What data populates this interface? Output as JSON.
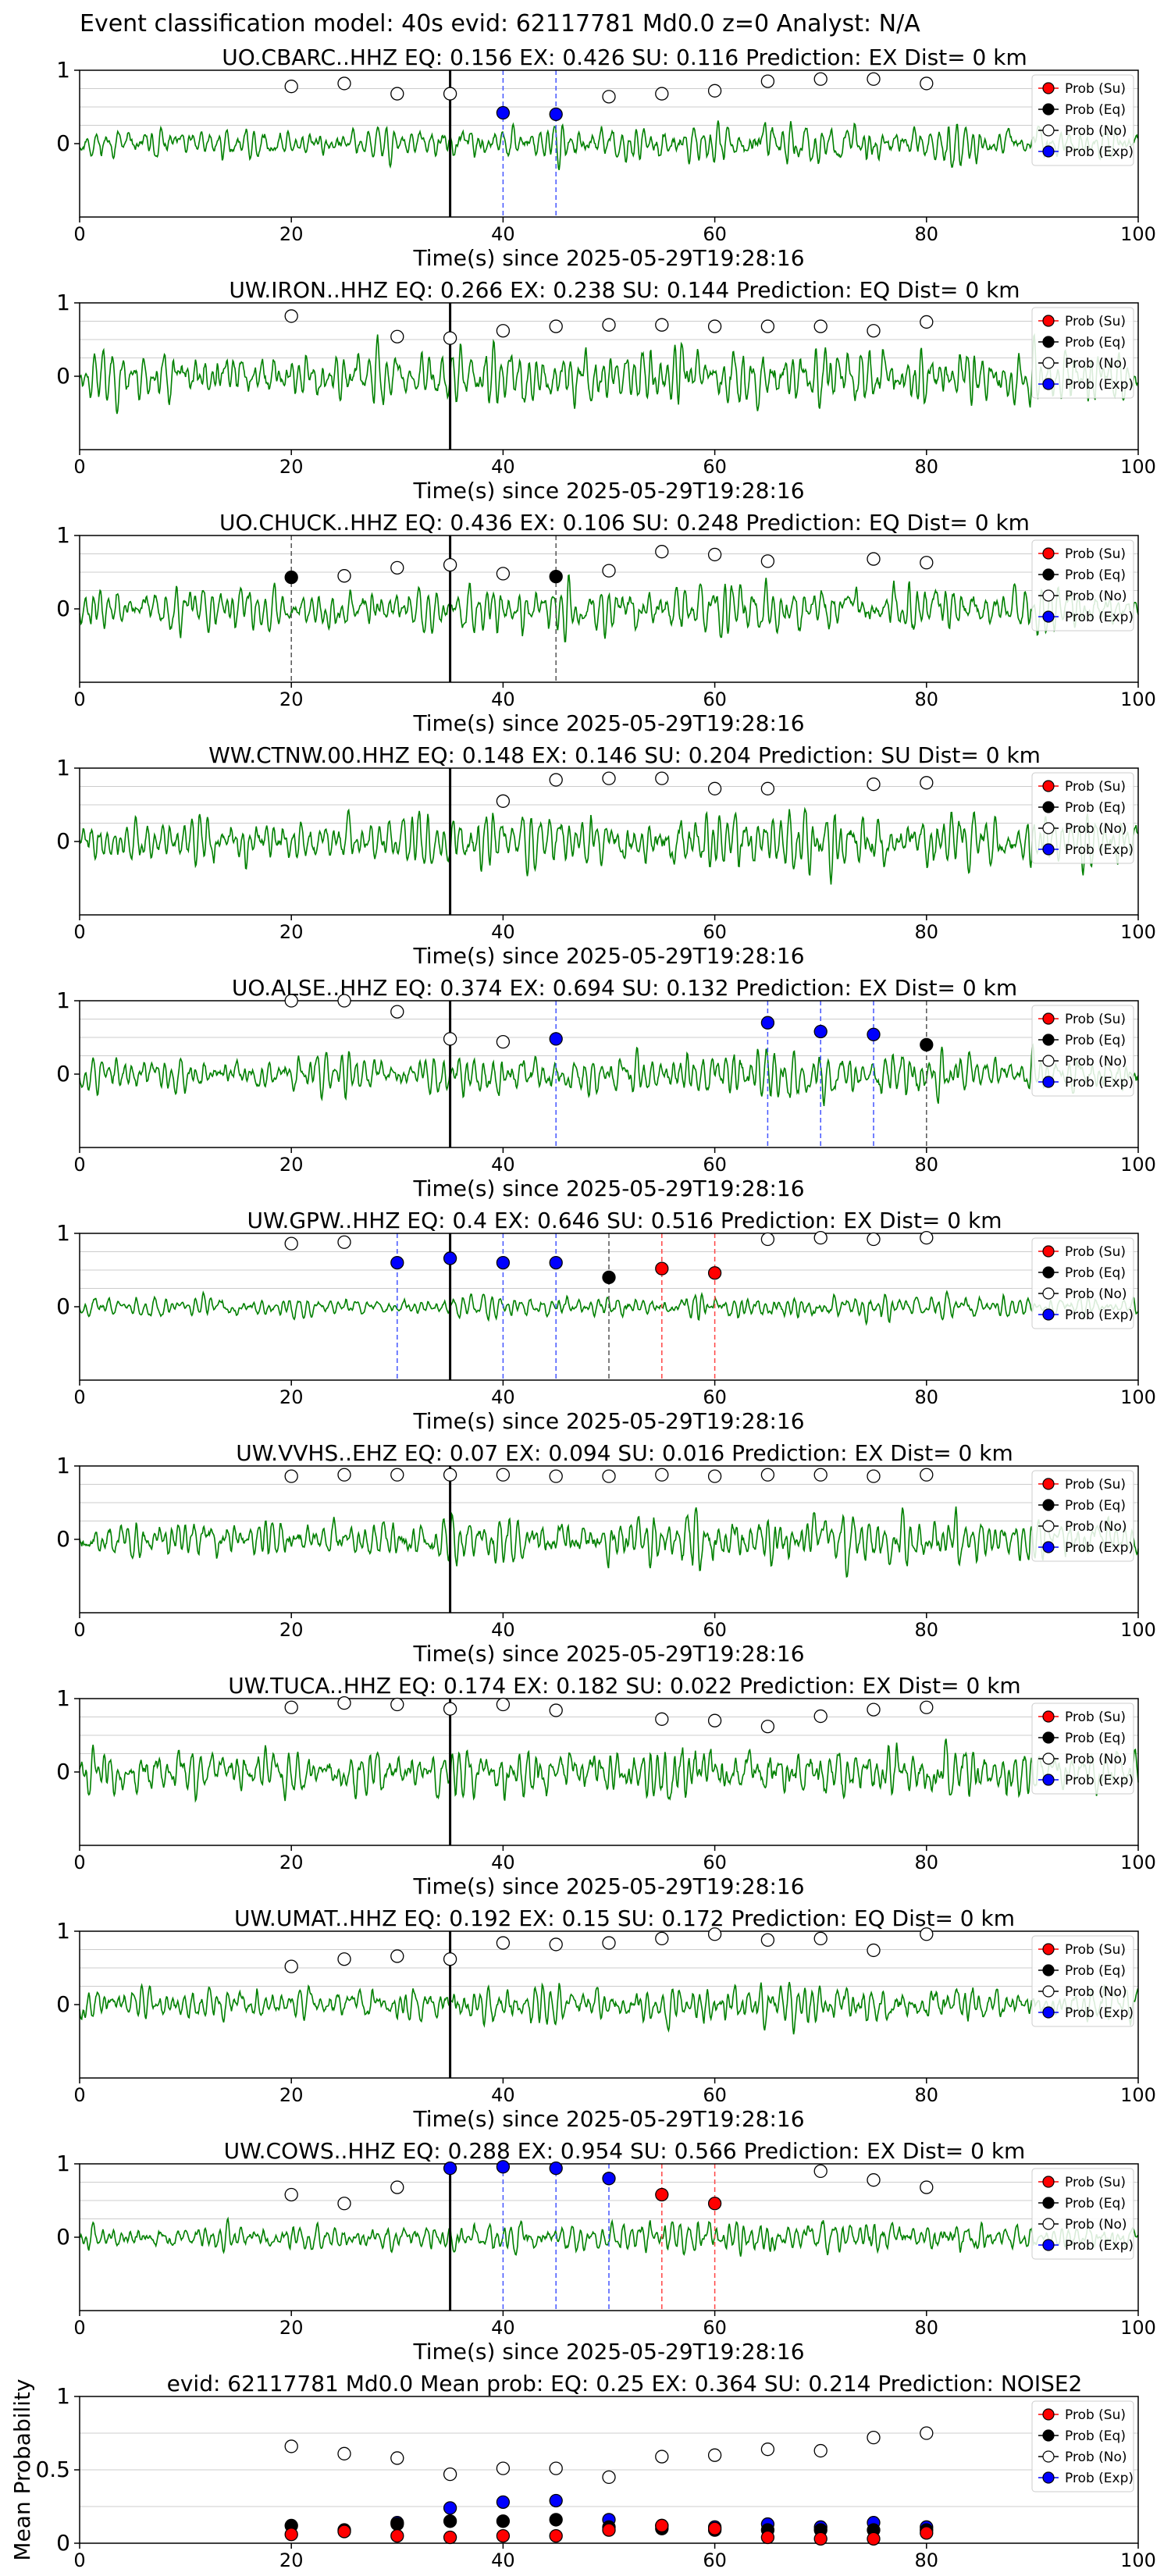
{
  "suptitle": "Event classification model: 40s evid: 62117781 Md0.0 z=0 Analyst: N/A",
  "xlabel": "Time(s) since 2025-05-29T19:28:16",
  "legend": [
    "Prob (Su)",
    "Prob (Eq)",
    "Prob (No)",
    "Prob (Exp)"
  ],
  "colors": {
    "su": "#ff0000",
    "eq": "#000000",
    "no": "#ffffff",
    "exp": "#0000ff",
    "wave": "#008000",
    "grid": "#cccccc"
  },
  "chart_data": [
    {
      "type": "line",
      "title": "UO.CBARC..HHZ   EQ: 0.156  EX: 0.426  SU: 0.116   Prediction: EX    Dist= 0 km",
      "xlim": [
        0,
        100
      ],
      "ylim": [
        -1,
        1
      ],
      "xticks": [
        0,
        20,
        40,
        60,
        80,
        100
      ],
      "yticks": [
        0,
        1
      ],
      "grid": "horizontal",
      "pick_time": 35,
      "seed": 11,
      "amp": 0.55,
      "no": [
        [
          20,
          0.78
        ],
        [
          25,
          0.82
        ],
        [
          30,
          0.68
        ],
        [
          35,
          0.68
        ],
        [
          50,
          0.64
        ],
        [
          55,
          0.68
        ],
        [
          60,
          0.72
        ],
        [
          65,
          0.85
        ],
        [
          70,
          0.88
        ],
        [
          75,
          0.88
        ],
        [
          80,
          0.82
        ]
      ],
      "eq": [],
      "su": [],
      "exp": [
        [
          40,
          0.42
        ],
        [
          45,
          0.4
        ]
      ]
    },
    {
      "type": "line",
      "title": "UW.IRON..HHZ   EQ: 0.266  EX: 0.238  SU: 0.144   Prediction: EQ    Dist= 0 km",
      "xlim": [
        0,
        100
      ],
      "ylim": [
        -1,
        1
      ],
      "xticks": [
        0,
        20,
        40,
        60,
        80,
        100
      ],
      "yticks": [
        0,
        1
      ],
      "grid": "horizontal",
      "pick_time": 35,
      "seed": 23,
      "amp": 0.9,
      "no": [
        [
          20,
          0.82
        ],
        [
          30,
          0.54
        ],
        [
          35,
          0.52
        ],
        [
          40,
          0.62
        ],
        [
          45,
          0.68
        ],
        [
          50,
          0.7
        ],
        [
          55,
          0.7
        ],
        [
          60,
          0.68
        ],
        [
          65,
          0.68
        ],
        [
          70,
          0.68
        ],
        [
          75,
          0.62
        ],
        [
          80,
          0.74
        ]
      ],
      "eq": [],
      "su": [],
      "exp": []
    },
    {
      "type": "line",
      "title": "UO.CHUCK..HHZ   EQ: 0.436  EX: 0.106  SU: 0.248   Prediction: EQ    Dist= 0 km",
      "xlim": [
        0,
        100
      ],
      "ylim": [
        -1,
        1
      ],
      "xticks": [
        0,
        20,
        40,
        60,
        80,
        100
      ],
      "yticks": [
        0,
        1
      ],
      "grid": "horizontal",
      "pick_time": 35,
      "seed": 37,
      "amp": 0.75,
      "no": [
        [
          25,
          0.45
        ],
        [
          30,
          0.56
        ],
        [
          35,
          0.6
        ],
        [
          40,
          0.48
        ],
        [
          50,
          0.52
        ],
        [
          55,
          0.78
        ],
        [
          60,
          0.74
        ],
        [
          65,
          0.65
        ],
        [
          75,
          0.68
        ],
        [
          80,
          0.63
        ]
      ],
      "eq": [
        [
          20,
          0.43
        ],
        [
          45,
          0.44
        ]
      ],
      "su": [],
      "exp": []
    },
    {
      "type": "line",
      "title": "WW.CTNW.00.HHZ   EQ: 0.148  EX: 0.146  SU: 0.204   Prediction: SU    Dist= 0 km",
      "xlim": [
        0,
        100
      ],
      "ylim": [
        -1,
        1
      ],
      "xticks": [
        0,
        20,
        40,
        60,
        80,
        100
      ],
      "yticks": [
        0,
        1
      ],
      "grid": "horizontal",
      "pick_time": 35,
      "seed": 41,
      "amp": 0.8,
      "no": [
        [
          40,
          0.55
        ],
        [
          45,
          0.84
        ],
        [
          50,
          0.86
        ],
        [
          55,
          0.86
        ],
        [
          60,
          0.72
        ],
        [
          65,
          0.72
        ],
        [
          75,
          0.78
        ],
        [
          80,
          0.8
        ]
      ],
      "eq": [],
      "su": [],
      "exp": []
    },
    {
      "type": "line",
      "title": "UO.ALSE..HHZ   EQ: 0.374  EX: 0.694  SU: 0.132   Prediction: EX    Dist= 0 km",
      "xlim": [
        0,
        100
      ],
      "ylim": [
        -1,
        1
      ],
      "xticks": [
        0,
        20,
        40,
        60,
        80,
        100
      ],
      "yticks": [
        0,
        1
      ],
      "grid": "horizontal",
      "pick_time": 35,
      "seed": 53,
      "amp": 0.65,
      "no": [
        [
          20,
          1.0
        ],
        [
          25,
          1.0
        ],
        [
          30,
          0.85
        ],
        [
          35,
          0.48
        ],
        [
          40,
          0.44
        ]
      ],
      "eq": [
        [
          80,
          0.4
        ]
      ],
      "su": [],
      "exp": [
        [
          45,
          0.48
        ],
        [
          65,
          0.7
        ],
        [
          70,
          0.58
        ],
        [
          75,
          0.54
        ]
      ]
    },
    {
      "type": "line",
      "title": "UW.GPW..HHZ   EQ: 0.4  EX: 0.646  SU: 0.516   Prediction: EX    Dist= 0 km",
      "xlim": [
        0,
        100
      ],
      "ylim": [
        -1,
        1
      ],
      "xticks": [
        0,
        20,
        40,
        60,
        80,
        100
      ],
      "yticks": [
        0,
        1
      ],
      "grid": "horizontal",
      "pick_time": 35,
      "seed": 67,
      "amp": 0.35,
      "no": [
        [
          20,
          0.86
        ],
        [
          25,
          0.88
        ],
        [
          65,
          0.92
        ],
        [
          70,
          0.94
        ],
        [
          75,
          0.92
        ],
        [
          80,
          0.94
        ]
      ],
      "eq": [
        [
          50,
          0.4
        ]
      ],
      "su": [
        [
          55,
          0.52
        ],
        [
          60,
          0.46
        ]
      ],
      "exp": [
        [
          30,
          0.6
        ],
        [
          35,
          0.66
        ],
        [
          40,
          0.6
        ],
        [
          45,
          0.6
        ]
      ]
    },
    {
      "type": "line",
      "title": "UW.VVHS..EHZ   EQ: 0.07  EX: 0.094  SU: 0.016   Prediction: EX    Dist= 0 km",
      "xlim": [
        0,
        100
      ],
      "ylim": [
        -1,
        1
      ],
      "xticks": [
        0,
        20,
        40,
        60,
        80,
        100
      ],
      "yticks": [
        0,
        1
      ],
      "grid": "horizontal",
      "pick_time": 35,
      "seed": 79,
      "amp": 0.75,
      "no": [
        [
          20,
          0.86
        ],
        [
          25,
          0.88
        ],
        [
          30,
          0.88
        ],
        [
          35,
          0.88
        ],
        [
          40,
          0.88
        ],
        [
          45,
          0.86
        ],
        [
          50,
          0.86
        ],
        [
          55,
          0.88
        ],
        [
          60,
          0.86
        ],
        [
          65,
          0.88
        ],
        [
          70,
          0.88
        ],
        [
          75,
          0.86
        ],
        [
          80,
          0.88
        ]
      ],
      "eq": [],
      "su": [],
      "exp": []
    },
    {
      "type": "line",
      "title": "UW.TUCA..HHZ   EQ: 0.174  EX: 0.182  SU: 0.022   Prediction: EX    Dist= 0 km",
      "xlim": [
        0,
        100
      ],
      "ylim": [
        -1,
        1
      ],
      "xticks": [
        0,
        20,
        40,
        60,
        80,
        100
      ],
      "yticks": [
        0,
        1
      ],
      "grid": "horizontal",
      "pick_time": 35,
      "seed": 83,
      "amp": 0.9,
      "no": [
        [
          20,
          0.88
        ],
        [
          25,
          0.94
        ],
        [
          30,
          0.92
        ],
        [
          35,
          0.86
        ],
        [
          40,
          0.92
        ],
        [
          45,
          0.84
        ],
        [
          55,
          0.72
        ],
        [
          60,
          0.7
        ],
        [
          65,
          0.62
        ],
        [
          70,
          0.76
        ],
        [
          75,
          0.85
        ],
        [
          80,
          0.88
        ]
      ],
      "eq": [],
      "su": [],
      "exp": []
    },
    {
      "type": "line",
      "title": "UW.UMAT..HHZ   EQ: 0.192  EX: 0.15  SU: 0.172   Prediction: EQ    Dist= 0 km",
      "xlim": [
        0,
        100
      ],
      "ylim": [
        -1,
        1
      ],
      "xticks": [
        0,
        20,
        40,
        60,
        80,
        100
      ],
      "yticks": [
        0,
        1
      ],
      "grid": "horizontal",
      "pick_time": 35,
      "seed": 97,
      "amp": 0.6,
      "no": [
        [
          20,
          0.52
        ],
        [
          25,
          0.62
        ],
        [
          30,
          0.66
        ],
        [
          35,
          0.62
        ],
        [
          40,
          0.84
        ],
        [
          45,
          0.82
        ],
        [
          50,
          0.84
        ],
        [
          55,
          0.9
        ],
        [
          60,
          0.96
        ],
        [
          65,
          0.88
        ],
        [
          70,
          0.9
        ],
        [
          75,
          0.74
        ],
        [
          80,
          0.96
        ]
      ],
      "eq": [],
      "su": [],
      "exp": []
    },
    {
      "type": "line",
      "title": "UW.COWS..HHZ   EQ: 0.288  EX: 0.954  SU: 0.566   Prediction: EX    Dist= 0 km",
      "xlim": [
        0,
        100
      ],
      "ylim": [
        -1,
        1
      ],
      "xticks": [
        0,
        20,
        40,
        60,
        80,
        100
      ],
      "yticks": [
        0,
        1
      ],
      "grid": "horizontal",
      "pick_time": 35,
      "seed": 101,
      "amp": 0.5,
      "no": [
        [
          20,
          0.58
        ],
        [
          25,
          0.46
        ],
        [
          30,
          0.68
        ],
        [
          70,
          0.9
        ],
        [
          75,
          0.78
        ],
        [
          80,
          0.68
        ]
      ],
      "eq": [],
      "su": [
        [
          55,
          0.58
        ],
        [
          60,
          0.46
        ]
      ],
      "exp": [
        [
          35,
          0.94
        ],
        [
          40,
          0.96
        ],
        [
          45,
          0.94
        ],
        [
          50,
          0.8
        ]
      ]
    },
    {
      "type": "scatter",
      "title": "evid: 62117781  Md0.0   Mean prob:   EQ: 0.25  EX: 0.364  SU: 0.214   Prediction: NOISE2",
      "ylabel": "Mean Probability",
      "xlim": [
        0,
        100
      ],
      "ylim": [
        0,
        1
      ],
      "xticks": [
        0,
        20,
        40,
        60,
        80,
        100
      ],
      "yticks": [
        0,
        0.5,
        1
      ],
      "grid": "horizontal",
      "no": [
        [
          20,
          0.66
        ],
        [
          25,
          0.61
        ],
        [
          30,
          0.58
        ],
        [
          35,
          0.47
        ],
        [
          40,
          0.51
        ],
        [
          45,
          0.51
        ],
        [
          50,
          0.45
        ],
        [
          55,
          0.59
        ],
        [
          60,
          0.6
        ],
        [
          65,
          0.64
        ],
        [
          70,
          0.63
        ],
        [
          75,
          0.72
        ],
        [
          80,
          0.75
        ]
      ],
      "exp": [
        [
          30,
          0.14
        ],
        [
          35,
          0.24
        ],
        [
          40,
          0.28
        ],
        [
          45,
          0.29
        ],
        [
          50,
          0.16
        ],
        [
          55,
          0.12
        ],
        [
          60,
          0.11
        ],
        [
          65,
          0.13
        ],
        [
          70,
          0.11
        ],
        [
          75,
          0.14
        ],
        [
          80,
          0.11
        ]
      ],
      "eq": [
        [
          20,
          0.12
        ],
        [
          25,
          0.09
        ],
        [
          30,
          0.13
        ],
        [
          35,
          0.15
        ],
        [
          40,
          0.15
        ],
        [
          45,
          0.16
        ],
        [
          50,
          0.11
        ],
        [
          55,
          0.1
        ],
        [
          60,
          0.09
        ],
        [
          65,
          0.09
        ],
        [
          70,
          0.09
        ],
        [
          75,
          0.09
        ],
        [
          80,
          0.09
        ]
      ],
      "su": [
        [
          20,
          0.06
        ],
        [
          25,
          0.08
        ],
        [
          30,
          0.05
        ],
        [
          35,
          0.04
        ],
        [
          40,
          0.05
        ],
        [
          45,
          0.05
        ],
        [
          50,
          0.09
        ],
        [
          55,
          0.12
        ],
        [
          60,
          0.1
        ],
        [
          65,
          0.04
        ],
        [
          70,
          0.03
        ],
        [
          75,
          0.03
        ],
        [
          80,
          0.07
        ]
      ]
    }
  ]
}
